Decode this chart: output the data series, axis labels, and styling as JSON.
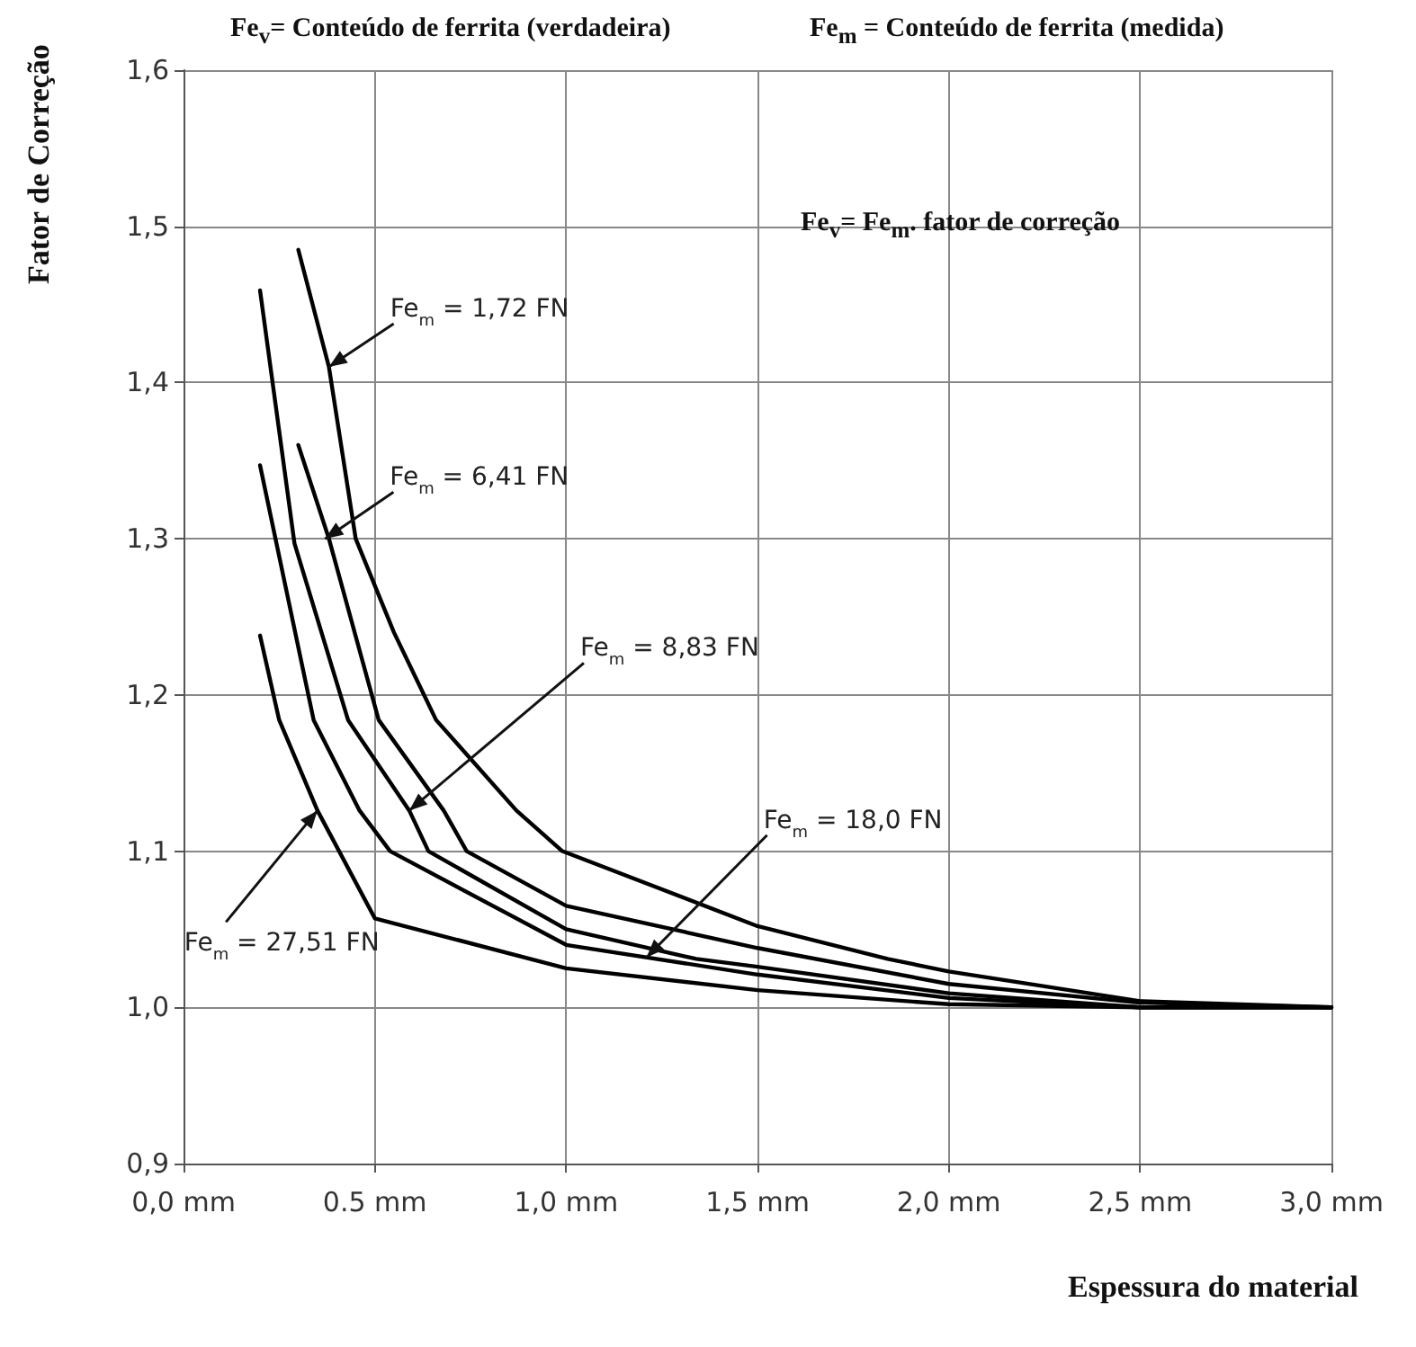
{
  "chart_data": {
    "type": "line",
    "xlabel": "Espessura do material",
    "ylabel": "Fator de Correção",
    "annotations": [
      "Fe$_{v}$= Conteúdo de ferrita (verdadeira)",
      "Fe$_{m}$ = Conteúdo de ferrita (medida)",
      "Fe$_{v}$= Fe$_{m}$. fator de correção",
      {
        "text": "Fe$_{m}$ = 1,72 FN",
        "x": 0.38,
        "y": 1.41
      },
      {
        "text": "Fe$_{m}$ = 6,41 FN",
        "x": 0.37,
        "y": 1.3
      },
      {
        "text": "Fe$_{m}$ = 8,83 FN",
        "x": 0.59,
        "y": 1.126
      },
      {
        "text": "Fe$_{m}$ = 18,0 FN",
        "x": 1.21,
        "y": 1.032
      },
      {
        "text": "Fe$_{m}$ = 27,51 FN",
        "x": 0.35,
        "y": 1.126
      }
    ],
    "series": [
      {
        "color": "#000000",
        "x": [
          0.3,
          0.38,
          0.45,
          0.55,
          0.66,
          0.87,
          0.99,
          1.5,
          1.84,
          2.0,
          2.5,
          3.0
        ],
        "values": [
          1.485,
          1.41,
          1.3,
          1.24,
          1.184,
          1.126,
          1.1,
          1.052,
          1.031,
          1.023,
          1.004,
          1.0
        ]
      },
      {
        "color": "#000000",
        "x": [
          0.3,
          0.38,
          0.51,
          0.68,
          0.74,
          1.0,
          1.5,
          2.0,
          2.5,
          3.0
        ],
        "values": [
          1.36,
          1.3,
          1.184,
          1.126,
          1.1,
          1.065,
          1.038,
          1.015,
          1.003,
          1.0
        ]
      },
      {
        "color": "#000000",
        "x": [
          0.2,
          0.29,
          0.43,
          0.59,
          0.64,
          1.0,
          1.34,
          1.5,
          2.0,
          2.5,
          3.0
        ],
        "values": [
          1.459,
          1.297,
          1.184,
          1.126,
          1.1,
          1.05,
          1.031,
          1.026,
          1.009,
          1.0,
          1.0
        ]
      },
      {
        "color": "#000000",
        "x": [
          0.2,
          0.34,
          0.46,
          0.54,
          1.0,
          1.5,
          2.0,
          2.5,
          3.0
        ],
        "values": [
          1.347,
          1.184,
          1.126,
          1.1,
          1.04,
          1.021,
          1.006,
          1.0,
          1.0
        ]
      },
      {
        "color": "#000000",
        "x": [
          0.2,
          0.25,
          0.35,
          0.5,
          1.0,
          1.5,
          2.0,
          2.5,
          3.0
        ],
        "values": [
          1.238,
          1.184,
          1.126,
          1.057,
          1.025,
          1.011,
          1.002,
          1.0,
          1.0
        ]
      }
    ],
    "xlim": [
      0,
      3
    ],
    "xticks": [
      {
        "value": 0,
        "label": "0,0 mm"
      },
      {
        "value": 0.5,
        "label": "0.5 mm"
      },
      {
        "value": 1,
        "label": "1,0 mm"
      },
      {
        "value": 1.5,
        "label": "1,5 mm"
      },
      {
        "value": 2,
        "label": "2,0 mm"
      },
      {
        "value": 2.5,
        "label": "2,5 mm"
      },
      {
        "value": 3,
        "label": "3,0 mm"
      }
    ],
    "ylim": [
      0.9,
      1.6
    ],
    "yticks": [
      {
        "value": 0.9,
        "label": "0,9"
      },
      {
        "value": 1,
        "label": "1,0"
      },
      {
        "value": 1.1,
        "label": "1,1"
      },
      {
        "value": 1.2,
        "label": "1,2"
      },
      {
        "value": 1.3,
        "label": "1,3"
      },
      {
        "value": 1.4,
        "label": "1,4"
      },
      {
        "value": 1.5,
        "label": "1,5"
      },
      {
        "value": 1.6,
        "label": "1,6"
      }
    ],
    "grid": true,
    "marker": "none",
    "line_style": "solid"
  }
}
